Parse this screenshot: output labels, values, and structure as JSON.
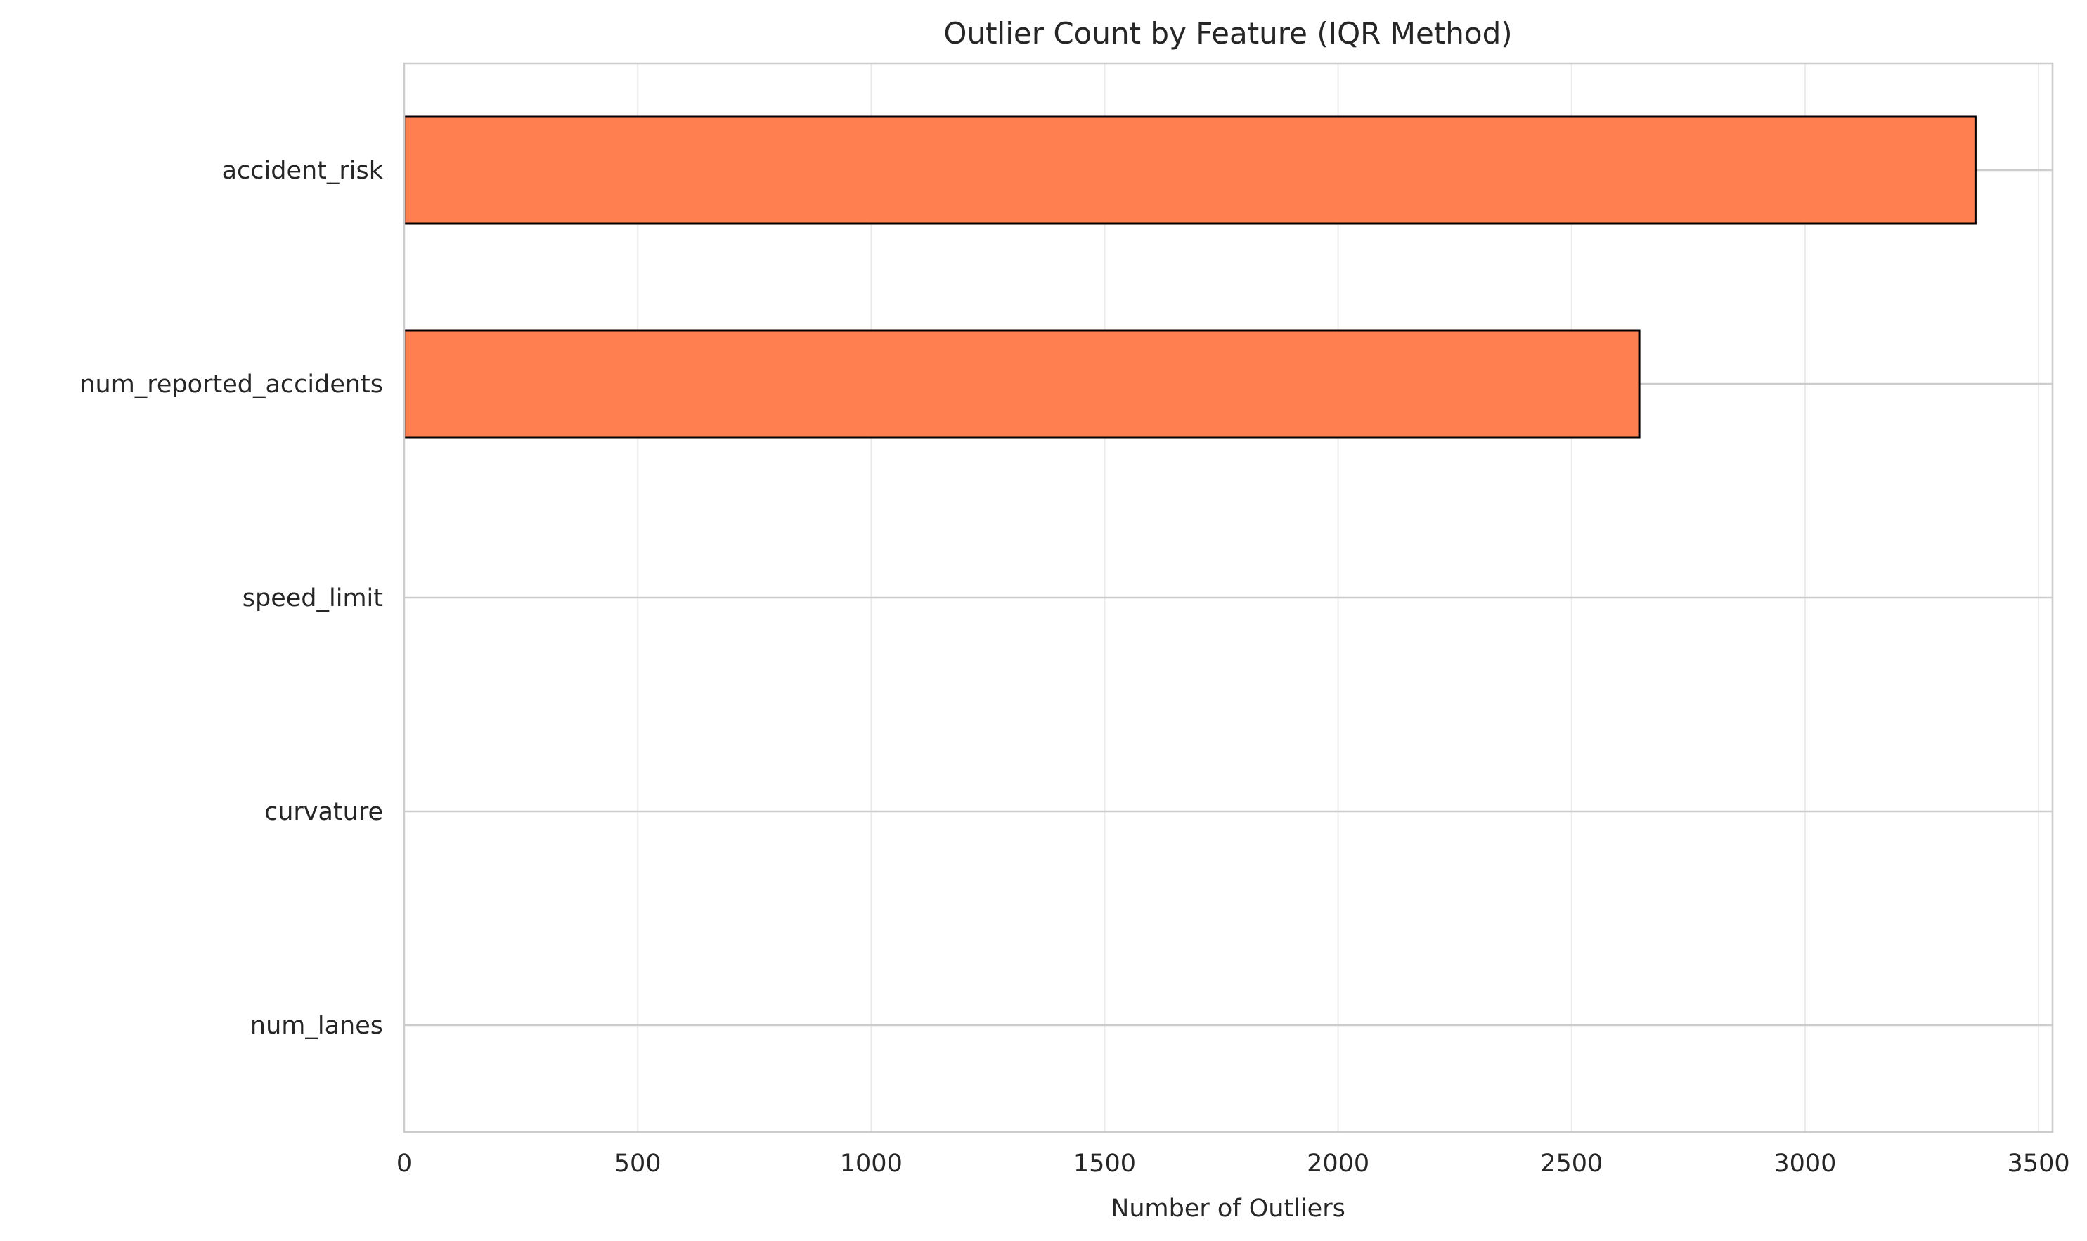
{
  "chart_data": {
    "type": "bar",
    "orientation": "horizontal",
    "title": "Outlier Count by Feature (IQR Method)",
    "xlabel": "Number of Outliers",
    "ylabel": "",
    "categories": [
      "accident_risk",
      "num_reported_accidents",
      "speed_limit",
      "curvature",
      "num_lanes"
    ],
    "values": [
      3365,
      2645,
      0,
      0,
      0
    ],
    "xlim": [
      0,
      3530
    ],
    "xticks": [
      0,
      500,
      1000,
      1500,
      2000,
      2500,
      3000,
      3500
    ],
    "grid": true,
    "legend": "none",
    "bar_color": "#ff7f50",
    "bar_edge_color": "#000000",
    "grid_color": "#ebebeb",
    "ygrid_color": "#cccccc",
    "axes_edge_color": "#cccccc"
  }
}
